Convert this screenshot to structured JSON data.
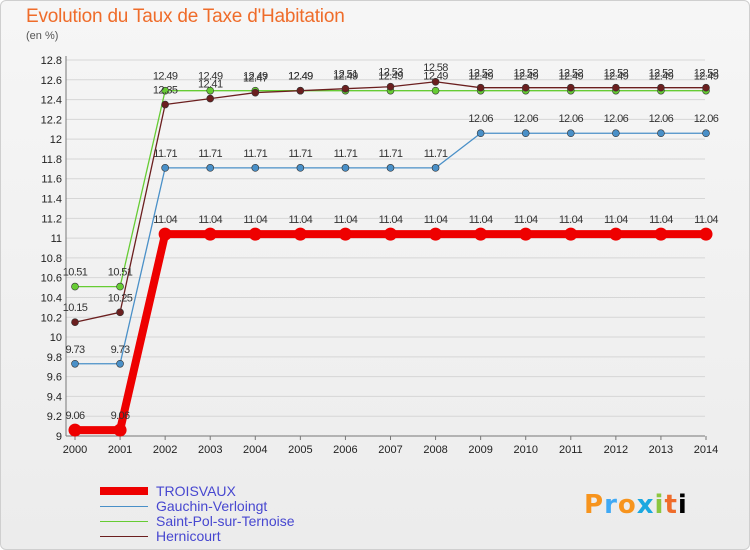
{
  "chart_data": {
    "type": "line",
    "title": "Evolution du Taux de Taxe d'Habitation",
    "subtitle": "(en %)",
    "xlabel": "",
    "ylabel": "(en %)",
    "ylim": [
      9,
      12.8
    ],
    "yticks": [
      "9",
      "9.2",
      "9.4",
      "9.6",
      "9.8",
      "10",
      "10.2",
      "10.4",
      "10.6",
      "10.8",
      "11",
      "11.2",
      "11.4",
      "11.6",
      "11.8",
      "12",
      "12.2",
      "12.4",
      "12.6",
      "12.8"
    ],
    "categories": [
      "2000",
      "2001",
      "2002",
      "2003",
      "2004",
      "2005",
      "2006",
      "2007",
      "2008",
      "2009",
      "2010",
      "2011",
      "2012",
      "2013",
      "2014"
    ],
    "series": [
      {
        "name": "TROISVAUX",
        "color": "#ee0000",
        "values": [
          9.06,
          9.06,
          11.04,
          11.04,
          11.04,
          11.04,
          11.04,
          11.04,
          11.04,
          11.04,
          11.04,
          11.04,
          11.04,
          11.04,
          11.04
        ],
        "labels": [
          "9.06",
          "9.06",
          "11.04",
          "11.04",
          "11.04",
          "11.04",
          "11.04",
          "11.04",
          "11.04",
          "11.04",
          "11.04",
          "11.04",
          "11.04",
          "11.04",
          "11.04"
        ]
      },
      {
        "name": "Gauchin-Verloingt",
        "color": "#4a90c8",
        "values": [
          9.73,
          9.73,
          11.71,
          11.71,
          11.71,
          11.71,
          11.71,
          11.71,
          11.71,
          12.06,
          12.06,
          12.06,
          12.06,
          12.06,
          12.06
        ],
        "labels": [
          "9.73",
          "9.73",
          "11.71",
          "11.71",
          "11.71",
          "11.71",
          "11.71",
          "11.71",
          "11.71",
          "12.06",
          "12.06",
          "12.06",
          "12.06",
          "12.06",
          "12.06"
        ]
      },
      {
        "name": "Saint-Pol-sur-Ternoise",
        "color": "#66cc33",
        "values": [
          10.51,
          10.51,
          12.49,
          12.49,
          12.49,
          12.49,
          12.49,
          12.49,
          12.49,
          12.49,
          12.49,
          12.49,
          12.49,
          12.49,
          12.49
        ],
        "labels": [
          "10.51",
          "10.51",
          "12.49",
          "12.49",
          "12.49",
          "12.49",
          "12.49",
          "12.49",
          "12.49",
          "12.49",
          "12.49",
          "12.49",
          "12.49",
          "12.49",
          "12.49"
        ]
      },
      {
        "name": "Hernicourt",
        "color": "#6b1f1f",
        "values": [
          10.15,
          10.25,
          12.35,
          12.41,
          12.47,
          12.49,
          12.51,
          12.53,
          12.58,
          12.52,
          12.52,
          12.52,
          12.52,
          12.52,
          12.52
        ],
        "labels": [
          "10.15",
          "10.25",
          "12.35",
          "12.41",
          "12.47",
          "12.49",
          "12.51",
          "12.53",
          "12.58",
          "12.52",
          "12.52",
          "12.52",
          "12.52",
          "12.52",
          "12.52"
        ]
      }
    ],
    "legend": [
      "TROISVAUX",
      "Gauchin-Verloingt",
      "Saint-Pol-sur-Ternoise",
      "Hernicourt"
    ],
    "grid": true,
    "legend_position": "bottom-left"
  },
  "branding": {
    "logo_letters": [
      "P",
      "r",
      "o",
      "x",
      "i",
      "t",
      "i"
    ]
  }
}
